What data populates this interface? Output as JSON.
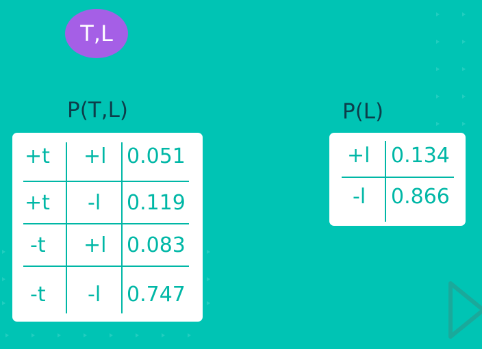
{
  "node": {
    "label": "T,L",
    "color": "#a55fe6"
  },
  "joint_table": {
    "title": "P(T,L)",
    "rows": [
      {
        "t": "+t",
        "l": "+l",
        "p": "0.051"
      },
      {
        "t": "+t",
        "l": "-l",
        "p": "0.119"
      },
      {
        "t": "-t",
        "l": "+l",
        "p": "0.083"
      },
      {
        "t": "-t",
        "l": "-l",
        "p": "0.747"
      }
    ]
  },
  "marginal_table": {
    "title": "P(L)",
    "rows": [
      {
        "l": "+l",
        "p": "0.134"
      },
      {
        "l": "-l",
        "p": "0.866"
      }
    ]
  },
  "colors": {
    "background": "#00c4b4",
    "title_text": "#0d3d4a",
    "table_text": "#00b7a6"
  }
}
